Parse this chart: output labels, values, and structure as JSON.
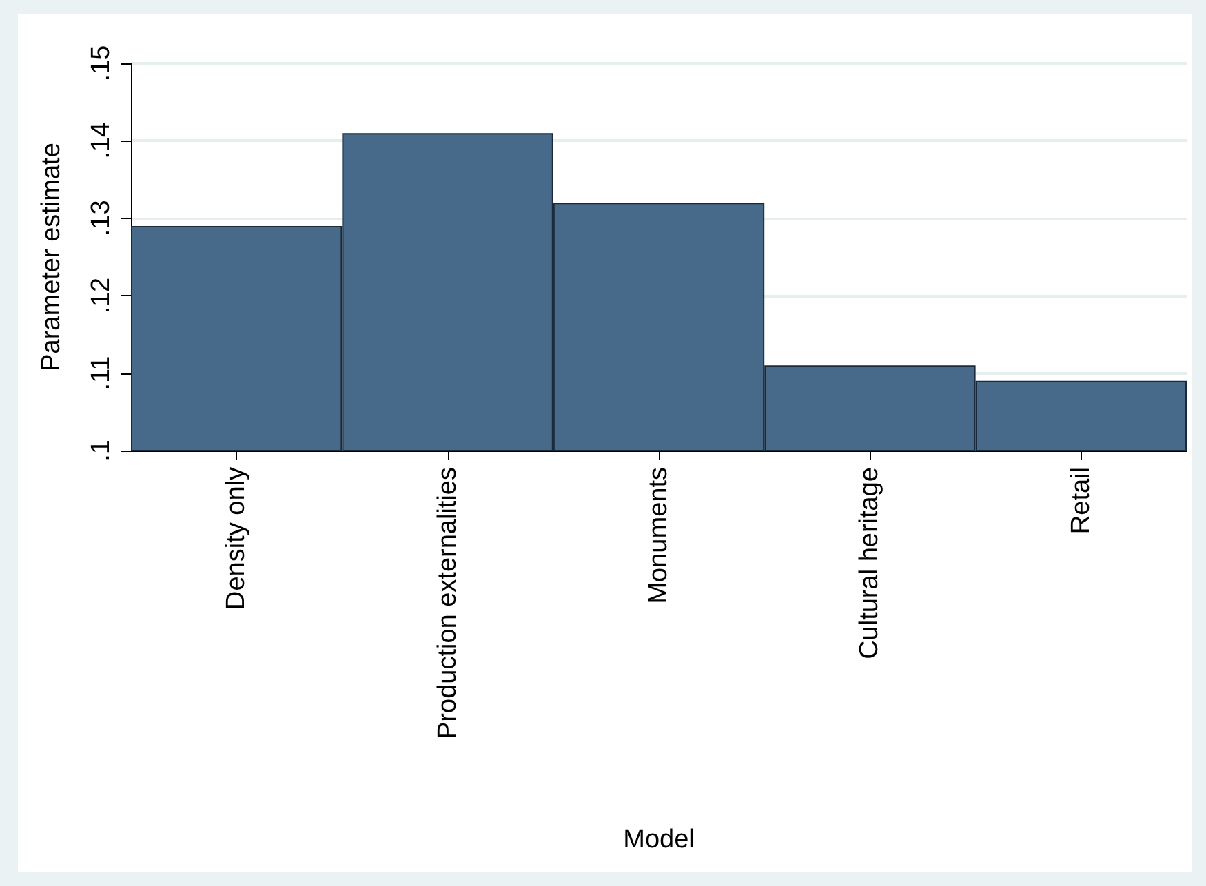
{
  "chart_data": {
    "type": "bar",
    "xlabel": "Model",
    "ylabel": "Parameter estimate",
    "categories": [
      "Density only",
      "Production externalities",
      "Monuments",
      "Cultural heritage",
      "Retail"
    ],
    "values": [
      0.129,
      0.141,
      0.132,
      0.111,
      0.109
    ],
    "color": "#476a8a",
    "ylim": [
      0.1,
      0.15
    ],
    "yticks": [
      {
        "value": 0.1,
        "label": ".1"
      },
      {
        "value": 0.11,
        "label": ".11"
      },
      {
        "value": 0.12,
        "label": ".12"
      },
      {
        "value": 0.13,
        "label": ".13"
      },
      {
        "value": 0.14,
        "label": ".14"
      },
      {
        "value": 0.15,
        "label": ".15"
      }
    ],
    "grid": "y"
  }
}
